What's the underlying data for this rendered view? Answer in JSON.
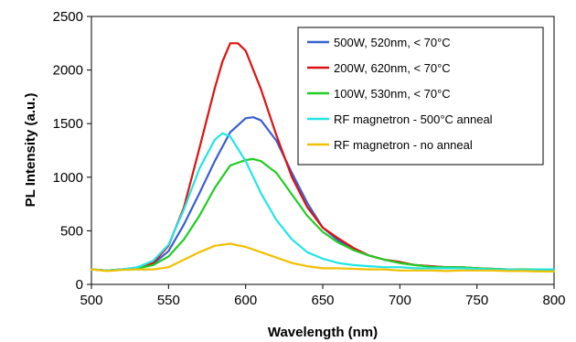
{
  "chart_data": {
    "type": "line",
    "title": "",
    "xlabel": "Wavelength  (nm)",
    "ylabel": "PL Intensity  (a.u.)",
    "xlim": [
      500,
      800
    ],
    "ylim": [
      0,
      2500
    ],
    "xticks": [
      500,
      550,
      600,
      650,
      700,
      750,
      800
    ],
    "yticks": [
      0,
      500,
      1000,
      1500,
      2000,
      2500
    ],
    "grid": false,
    "legend_position": "top-right",
    "series": [
      {
        "name": "500W, 520nm, < 70°C",
        "color": "#3a5fcd",
        "x": [
          500,
          510,
          520,
          530,
          540,
          550,
          560,
          570,
          580,
          590,
          600,
          605,
          610,
          620,
          630,
          640,
          650,
          660,
          670,
          680,
          690,
          700,
          710,
          720,
          730,
          740,
          750,
          760,
          770,
          780,
          790,
          800
        ],
        "y": [
          140,
          130,
          140,
          150,
          190,
          310,
          560,
          850,
          1150,
          1420,
          1550,
          1560,
          1530,
          1340,
          1040,
          760,
          530,
          410,
          320,
          270,
          230,
          200,
          180,
          170,
          160,
          160,
          150,
          140,
          140,
          135,
          140,
          140
        ]
      },
      {
        "name": "200W, 620nm, < 70°C",
        "color": "#dd1111",
        "x": [
          500,
          510,
          520,
          530,
          540,
          550,
          560,
          570,
          580,
          585,
          590,
          595,
          600,
          610,
          620,
          630,
          640,
          650,
          660,
          670,
          680,
          690,
          700,
          710,
          720,
          730,
          740,
          750,
          760,
          770,
          780,
          790,
          800
        ],
        "y": [
          140,
          130,
          140,
          150,
          200,
          360,
          720,
          1270,
          1830,
          2080,
          2250,
          2250,
          2180,
          1820,
          1390,
          1000,
          720,
          530,
          430,
          340,
          270,
          230,
          210,
          180,
          170,
          160,
          160,
          150,
          145,
          140,
          140,
          140,
          140
        ]
      },
      {
        "name": "100W, 530nm, < 70°C",
        "color": "#22cc22",
        "x": [
          500,
          510,
          520,
          530,
          540,
          550,
          560,
          570,
          580,
          590,
          600,
          605,
          610,
          620,
          630,
          640,
          650,
          660,
          670,
          680,
          690,
          700,
          710,
          720,
          730,
          740,
          750,
          760,
          770,
          780,
          790,
          800
        ],
        "y": [
          140,
          130,
          140,
          150,
          180,
          260,
          420,
          640,
          900,
          1110,
          1160,
          1170,
          1150,
          1040,
          840,
          640,
          490,
          390,
          320,
          270,
          230,
          200,
          180,
          165,
          160,
          160,
          150,
          145,
          140,
          140,
          140,
          140
        ]
      },
      {
        "name": "RF magnetron - 500°C anneal",
        "color": "#22e5e5",
        "x": [
          500,
          510,
          520,
          530,
          540,
          550,
          560,
          570,
          580,
          585,
          590,
          600,
          610,
          620,
          630,
          640,
          650,
          660,
          670,
          680,
          690,
          700,
          710,
          720,
          730,
          740,
          750,
          760,
          770,
          780,
          790,
          800
        ],
        "y": [
          140,
          130,
          140,
          160,
          220,
          370,
          700,
          1080,
          1350,
          1410,
          1380,
          1150,
          850,
          600,
          420,
          300,
          240,
          200,
          180,
          170,
          160,
          160,
          150,
          150,
          150,
          150,
          145,
          140,
          140,
          135,
          140,
          140
        ]
      },
      {
        "name": "RF magnetron - no anneal",
        "color": "#f2bf00",
        "x": [
          500,
          510,
          520,
          530,
          540,
          550,
          560,
          570,
          580,
          590,
          600,
          610,
          620,
          630,
          640,
          650,
          660,
          670,
          680,
          690,
          700,
          710,
          720,
          730,
          740,
          750,
          760,
          770,
          780,
          790,
          800
        ],
        "y": [
          140,
          125,
          135,
          140,
          140,
          160,
          230,
          300,
          360,
          380,
          350,
          300,
          250,
          200,
          170,
          150,
          150,
          145,
          140,
          140,
          130,
          130,
          130,
          125,
          130,
          130,
          130,
          125,
          125,
          120,
          120
        ]
      }
    ]
  }
}
